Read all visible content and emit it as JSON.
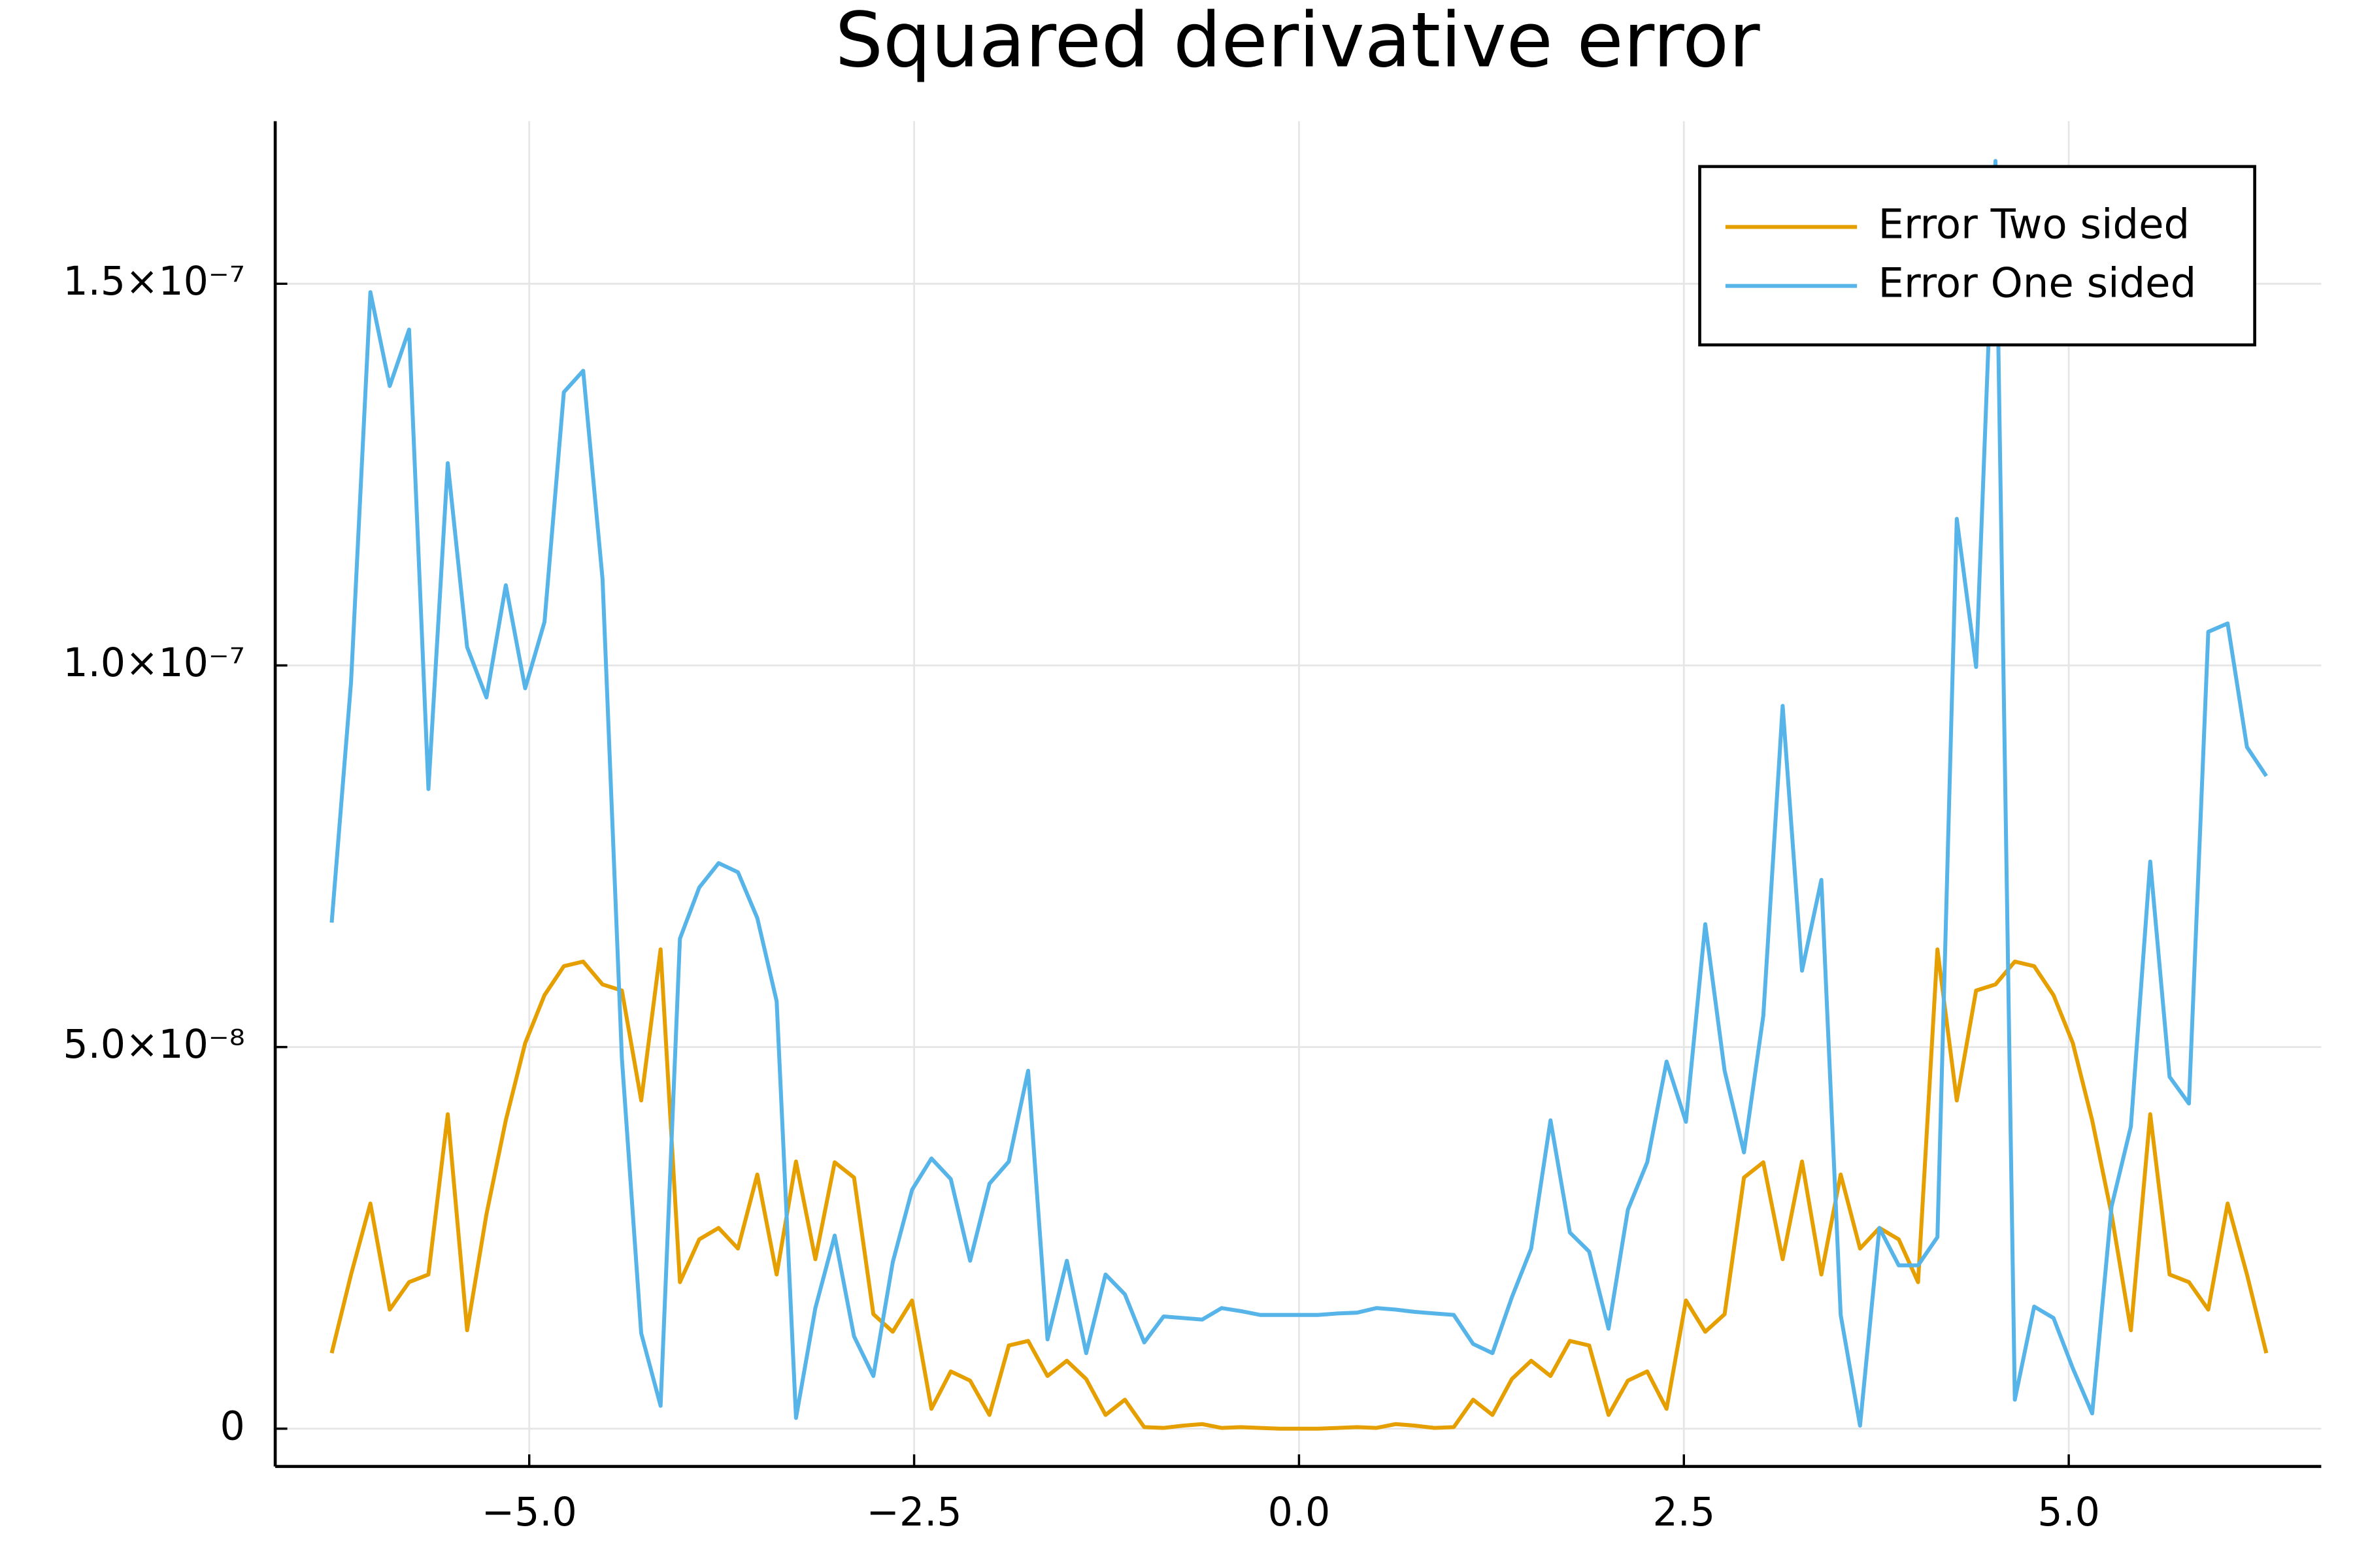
{
  "chart_data": {
    "type": "line",
    "title": "Squared derivative error",
    "x": [
      -6.2832,
      -6.1575,
      -6.0319,
      -5.9062,
      -5.7805,
      -5.6549,
      -5.5292,
      -5.4035,
      -5.2779,
      -5.1522,
      -5.0265,
      -4.9009,
      -4.7752,
      -4.6496,
      -4.5239,
      -4.3982,
      -4.2726,
      -4.1469,
      -4.0212,
      -3.8956,
      -3.7699,
      -3.6442,
      -3.5186,
      -3.3929,
      -3.2673,
      -3.1416,
      -3.0159,
      -2.8903,
      -2.7646,
      -2.6389,
      -2.5133,
      -2.3876,
      -2.2619,
      -2.1363,
      -2.0106,
      -1.885,
      -1.7593,
      -1.6336,
      -1.508,
      -1.3823,
      -1.2566,
      -1.131,
      -1.0053,
      -0.8796,
      -0.754,
      -0.6283,
      -0.5027,
      -0.377,
      -0.2513,
      -0.1257,
      0,
      0.1257,
      0.2513,
      0.377,
      0.5027,
      0.6283,
      0.754,
      0.8796,
      1.0053,
      1.131,
      1.2566,
      1.3823,
      1.508,
      1.6336,
      1.7593,
      1.885,
      2.0106,
      2.1363,
      2.2619,
      2.3876,
      2.5133,
      2.6389,
      2.7646,
      2.8903,
      3.0159,
      3.1416,
      3.2673,
      3.3929,
      3.5186,
      3.6442,
      3.7699,
      3.8956,
      4.0212,
      4.1469,
      4.2726,
      4.3982,
      4.5239,
      4.6496,
      4.7752,
      4.9009,
      5.0265,
      5.1522,
      5.2779,
      5.4035,
      5.5292,
      5.6549,
      5.7805,
      5.9062,
      6.0319,
      6.1575,
      6.2832
    ],
    "series": [
      {
        "name": "Error Two sided",
        "color": "#e69f00",
        "values": [
          9.9e-09,
          2.02e-08,
          2.95e-08,
          1.56e-08,
          1.92e-08,
          2.02e-08,
          4.12e-08,
          1.29e-08,
          2.81e-08,
          4.04e-08,
          5.05e-08,
          5.68e-08,
          6.06e-08,
          6.12e-08,
          5.82e-08,
          5.74e-08,
          4.3e-08,
          6.28e-08,
          1.92e-08,
          2.48e-08,
          2.63e-08,
          2.36e-08,
          3.33e-08,
          2.02e-08,
          3.5e-08,
          2.22e-08,
          3.49e-08,
          3.29e-08,
          1.5e-08,
          1.27e-08,
          1.68e-08,
          2.6e-09,
          7.5e-09,
          6.3e-09,
          1.8e-09,
          1.09e-08,
          1.15e-08,
          6.9e-09,
          8.9e-09,
          6.5e-09,
          1.8e-09,
          3.8e-09,
          2e-10,
          1e-10,
          4e-10,
          6e-10,
          1e-10,
          2e-10,
          1e-10,
          0,
          0,
          0,
          1e-10,
          2e-10,
          1e-10,
          6e-10,
          4e-10,
          1e-10,
          2e-10,
          3.8e-09,
          1.8e-09,
          6.5e-09,
          8.9e-09,
          6.9e-09,
          1.15e-08,
          1.09e-08,
          1.8e-09,
          6.3e-09,
          7.5e-09,
          2.6e-09,
          1.68e-08,
          1.27e-08,
          1.5e-08,
          3.29e-08,
          3.49e-08,
          2.22e-08,
          3.5e-08,
          2.02e-08,
          3.33e-08,
          2.36e-08,
          2.63e-08,
          2.48e-08,
          1.92e-08,
          6.28e-08,
          4.3e-08,
          5.74e-08,
          5.82e-08,
          6.12e-08,
          6.06e-08,
          5.68e-08,
          5.05e-08,
          4.04e-08,
          2.81e-08,
          1.29e-08,
          4.12e-08,
          2.02e-08,
          1.92e-08,
          1.56e-08,
          2.95e-08,
          2.02e-08,
          9.9e-09
        ]
      },
      {
        "name": "Error One sided",
        "color": "#56b4e9",
        "values": [
          6.63e-08,
          9.78e-08,
          1.489e-07,
          1.366e-07,
          1.44e-07,
          8.38e-08,
          1.265e-07,
          1.024e-07,
          9.58e-08,
          1.105e-07,
          9.7e-08,
          1.057e-07,
          1.358e-07,
          1.386e-07,
          1.113e-07,
          4.85e-08,
          1.25e-08,
          3e-09,
          6.42e-08,
          7.09e-08,
          7.41e-08,
          7.29e-08,
          6.69e-08,
          5.6e-08,
          1.4e-09,
          1.58e-08,
          2.53e-08,
          1.21e-08,
          6.9e-09,
          2.18e-08,
          3.13e-08,
          3.54e-08,
          3.27e-08,
          2.2e-08,
          3.21e-08,
          3.5e-08,
          4.69e-08,
          1.17e-08,
          2.2e-08,
          9.9e-09,
          2.02e-08,
          1.76e-08,
          1.13e-08,
          1.47e-08,
          1.45e-08,
          1.43e-08,
          1.58e-08,
          1.54e-08,
          1.49e-08,
          1.49e-08,
          1.49e-08,
          1.49e-08,
          1.51e-08,
          1.52e-08,
          1.58e-08,
          1.56e-08,
          1.53e-08,
          1.51e-08,
          1.49e-08,
          1.11e-08,
          9.9e-09,
          1.72e-08,
          2.36e-08,
          4.04e-08,
          2.57e-08,
          2.32e-08,
          1.31e-08,
          2.87e-08,
          3.49e-08,
          4.81e-08,
          4.02e-08,
          6.61e-08,
          4.69e-08,
          3.62e-08,
          5.41e-08,
          9.47e-08,
          6e-08,
          7.19e-08,
          1.49e-08,
          4e-10,
          2.63e-08,
          2.14e-08,
          2.14e-08,
          2.51e-08,
          1.192e-07,
          9.98e-08,
          1.661e-07,
          3.8e-09,
          1.6e-08,
          1.45e-08,
          7.9e-09,
          2e-09,
          2.91e-08,
          3.96e-08,
          7.43e-08,
          4.61e-08,
          4.26e-08,
          1.044e-07,
          1.055e-07,
          8.93e-08,
          8.55e-08
        ]
      }
    ],
    "xlim": [
      -6.65,
      6.64
    ],
    "ylim": [
      -4.95e-09,
      1.713e-07
    ],
    "xticks": [
      {
        "value": -5,
        "label": "−5.0"
      },
      {
        "value": -2.5,
        "label": "−2.5"
      },
      {
        "value": 0,
        "label": "0.0"
      },
      2.5,
      {
        "value": 5,
        "label": "5.0"
      }
    ],
    "yticks": [
      0,
      {
        "value": 5e-08,
        "label": "5.0×10⁻⁸"
      },
      {
        "value": 1e-07,
        "label": "1.0×10⁻⁷"
      },
      {
        "value": 1.5e-07,
        "label": "1.5×10⁻⁷"
      }
    ],
    "grid": true,
    "legend": "top-right"
  }
}
